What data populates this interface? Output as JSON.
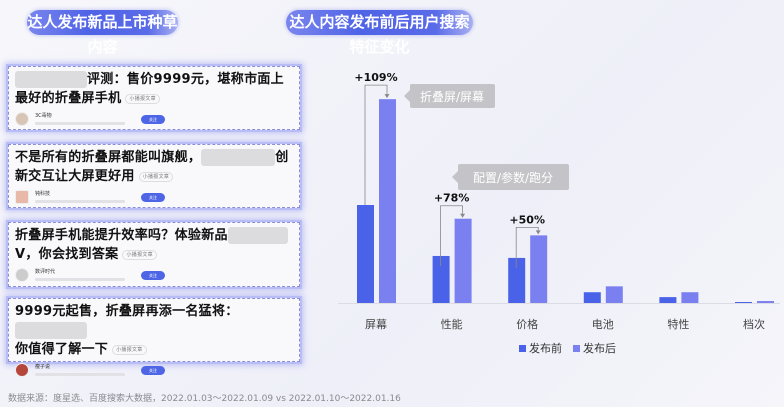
{
  "left_panel": {
    "title": "达人发布新品上市种草内容",
    "cards": [
      {
        "title_before": "",
        "title_after": "评测：售价9999元，堪称市面上最好的折叠屏手机",
        "tag": "小播报文章",
        "author": "3C毒物",
        "follow": "关注"
      },
      {
        "title_before": "不是所有的折叠屏都能叫旗舰，",
        "title_after": "创新交互让大屏更好用",
        "tag": "小播报文章",
        "author": "钝科技",
        "follow": "关注"
      },
      {
        "title_before": "折叠屏手机能提升效率吗？体验新品",
        "title_after": "V，你会找到答案",
        "tag": "小播报文章",
        "author": "数评时代",
        "follow": "关注"
      },
      {
        "title_before": "9999元起售，折叠屏再添一名猛将：",
        "title_after": "你值得了解一下",
        "tag": "小播报文章",
        "author": "瘦子说",
        "follow": "关注"
      }
    ]
  },
  "right_panel": {
    "title": "达人内容发布前后用户搜索特征变化"
  },
  "chart_data": {
    "type": "bar",
    "title": "达人内容发布前后用户搜索特征变化",
    "categories": [
      "屏幕",
      "性能",
      "价格",
      "电池",
      "特性",
      "档次"
    ],
    "series": [
      {
        "name": "发布前",
        "values": [
          100,
          48,
          46,
          11,
          6,
          1
        ],
        "color": "#4a62e8"
      },
      {
        "name": "发布后",
        "values": [
          208,
          86,
          69,
          17,
          11,
          2
        ],
        "color": "#7b80f0"
      }
    ],
    "annotations": [
      {
        "category": "屏幕",
        "label": "+109%"
      },
      {
        "category": "性能",
        "label": "+78%"
      },
      {
        "category": "价格",
        "label": "+50%"
      }
    ],
    "callouts": [
      "折叠屏/屏幕",
      "配置/参数/跑分"
    ],
    "legend": "bottom",
    "grid": false,
    "y_axis_shown": false
  },
  "source": "数据来源：度星选、百度搜索大数据，2022.01.03～2022.01.09 vs 2022.01.10～2022.01.16"
}
